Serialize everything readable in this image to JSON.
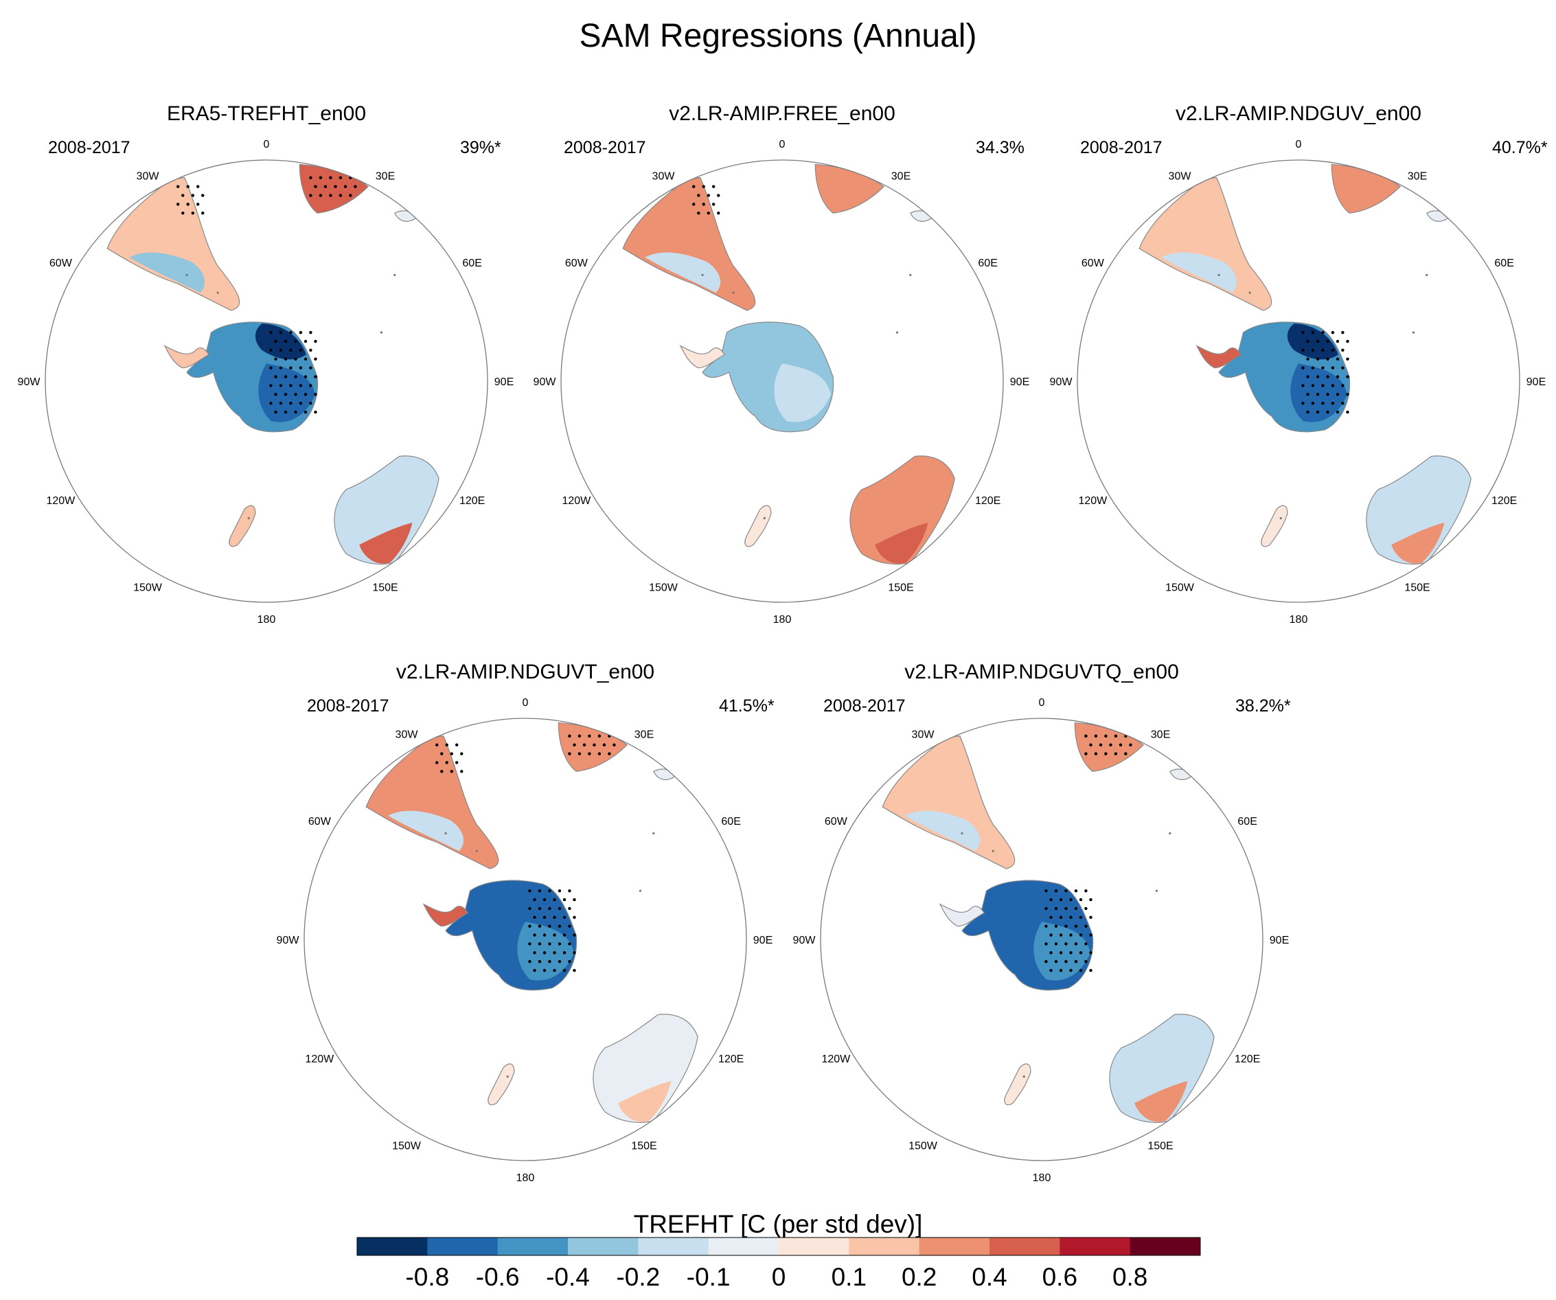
{
  "title": "SAM Regressions (Annual)",
  "colorbar": {
    "label": "TREFHT [C (per std dev)]",
    "colors": [
      "#053061",
      "#2166ac",
      "#4393c3",
      "#92c5de",
      "#c7dfee",
      "#e8eef3",
      "#fbe6dc",
      "#f9c4a8",
      "#ec9172",
      "#d6604d",
      "#b2182b",
      "#67001f"
    ],
    "ticks": [
      "-0.8",
      "-0.6",
      "-0.4",
      "-0.2",
      "-0.1",
      "0",
      "0.1",
      "0.2",
      "0.4",
      "0.6",
      "0.8"
    ]
  },
  "longitude_labels": [
    "0",
    "30E",
    "60E",
    "90E",
    "120E",
    "150E",
    "180",
    "150W",
    "120W",
    "90W",
    "60W",
    "30W"
  ],
  "panels": [
    {
      "title": "ERA5-TREFHT_en00",
      "period": "2008-2017",
      "percent": "39%*",
      "antarctica": [
        "#08306b",
        "#2166ac",
        "#4393c3"
      ],
      "peninsula": "#f9c4a8",
      "africa": "#d6604d",
      "south_america": "#f9c4a8",
      "sa_south": "#92c5de",
      "australia": "#c7dfee",
      "aus_south": "#d6604d",
      "nz": "#f9c4a8",
      "stipple": [
        "africa",
        "antarctica",
        "south_america"
      ]
    },
    {
      "title": "v2.LR-AMIP.FREE_en00",
      "period": "2008-2017",
      "percent": "34.3%",
      "antarctica": [
        "#92c5de",
        "#c7dfee",
        "#92c5de"
      ],
      "peninsula": "#fbe6dc",
      "africa": "#ec9172",
      "south_america": "#ec9172",
      "sa_south": "#c7dfee",
      "australia": "#ec9172",
      "aus_south": "#d6604d",
      "nz": "#fbe6dc",
      "stipple": [
        "south_america"
      ]
    },
    {
      "title": "v2.LR-AMIP.NDGUV_en00",
      "period": "2008-2017",
      "percent": "40.7%*",
      "antarctica": [
        "#08306b",
        "#2166ac",
        "#4393c3"
      ],
      "peninsula": "#d6604d",
      "africa": "#ec9172",
      "south_america": "#f9c4a8",
      "sa_south": "#c7dfee",
      "australia": "#c7dfee",
      "aus_south": "#ec9172",
      "nz": "#fbe6dc",
      "stipple": [
        "antarctica"
      ]
    },
    {
      "title": "v2.LR-AMIP.NDGUVT_en00",
      "period": "2008-2017",
      "percent": "41.5%*",
      "antarctica": [
        "#2166ac",
        "#4393c3",
        "#2166ac"
      ],
      "peninsula": "#d6604d",
      "africa": "#ec9172",
      "south_america": "#ec9172",
      "sa_south": "#c7dfee",
      "australia": "#e8eef3",
      "aus_south": "#f9c4a8",
      "nz": "#fbe6dc",
      "stipple": [
        "africa",
        "antarctica",
        "south_america"
      ]
    },
    {
      "title": "v2.LR-AMIP.NDGUVTQ_en00",
      "period": "2008-2017",
      "percent": "38.2%*",
      "antarctica": [
        "#2166ac",
        "#4393c3",
        "#2166ac"
      ],
      "peninsula": "#e8eef3",
      "africa": "#ec9172",
      "south_america": "#f9c4a8",
      "sa_south": "#c7dfee",
      "australia": "#c7dfee",
      "aus_south": "#ec9172",
      "nz": "#fbe6dc",
      "stipple": [
        "africa",
        "antarctica"
      ]
    }
  ]
}
